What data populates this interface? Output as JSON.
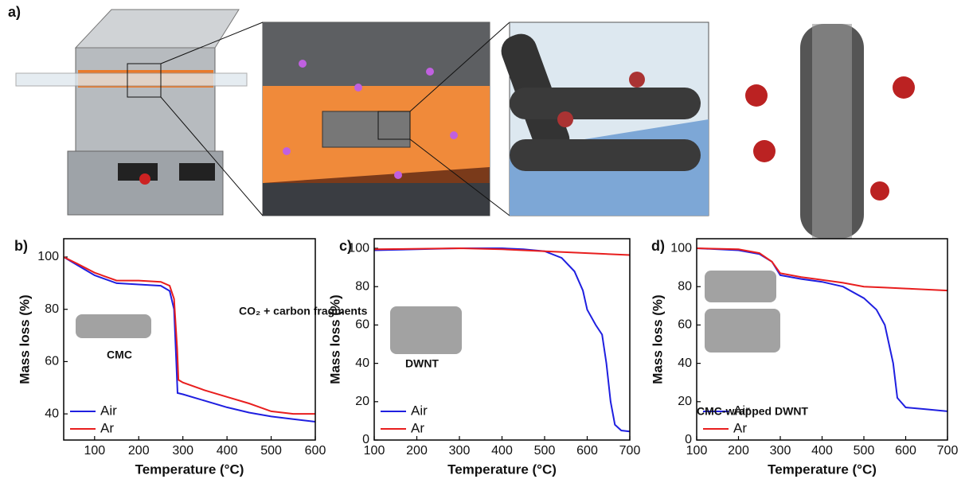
{
  "figure_label": "a)",
  "chart_data": [
    {
      "type": "line",
      "panel_label": "b)",
      "xlabel": "Temperature (°C)",
      "ylabel": "Mass loss (%)",
      "xlim": [
        30,
        600
      ],
      "xticks": [
        100,
        200,
        300,
        400,
        500,
        600
      ],
      "ylim": [
        30,
        107
      ],
      "yticks": [
        40,
        60,
        80,
        100
      ],
      "legend": "lower left",
      "annotations": [
        "CO₂ + carbon fragments",
        "CMC"
      ],
      "series": [
        {
          "name": "Air",
          "color": "#1f1fe0",
          "x": [
            30,
            60,
            100,
            150,
            200,
            250,
            270,
            280,
            285,
            288,
            300,
            350,
            400,
            450,
            500,
            550,
            600
          ],
          "values": [
            100,
            97,
            93,
            90,
            89.5,
            89,
            87,
            80,
            60,
            48,
            47.5,
            45,
            42.5,
            40.5,
            39,
            38,
            37
          ]
        },
        {
          "name": "Ar",
          "color": "#e81e1e",
          "x": [
            30,
            60,
            100,
            150,
            200,
            250,
            270,
            280,
            287,
            290,
            300,
            350,
            400,
            450,
            500,
            550,
            600
          ],
          "values": [
            100,
            97.5,
            94,
            91,
            91,
            90.5,
            89,
            84,
            65,
            53,
            52,
            49,
            46.5,
            44,
            41,
            40,
            40
          ]
        }
      ]
    },
    {
      "type": "line",
      "panel_label": "c)",
      "xlabel": "Temperature (°C)",
      "ylabel": "Mass loss (%)",
      "xlim": [
        100,
        700
      ],
      "xticks": [
        100,
        200,
        300,
        400,
        500,
        600,
        700
      ],
      "ylim": [
        0,
        105
      ],
      "yticks": [
        0,
        20,
        40,
        60,
        80,
        100
      ],
      "legend": "lower left",
      "annotations": [
        "DWNT"
      ],
      "series": [
        {
          "name": "Air",
          "color": "#1f1fe0",
          "x": [
            100,
            200,
            300,
            400,
            450,
            500,
            540,
            570,
            590,
            600,
            620,
            635,
            645,
            655,
            665,
            680,
            700
          ],
          "values": [
            99,
            99.5,
            100,
            100,
            99.5,
            98.5,
            95,
            88,
            78,
            68,
            60,
            55,
            40,
            20,
            8,
            5,
            4.5
          ]
        },
        {
          "name": "Ar",
          "color": "#e81e1e",
          "x": [
            100,
            300,
            400,
            500,
            600,
            700
          ],
          "values": [
            99.5,
            100,
            99.5,
            98.5,
            97.5,
            96.5
          ]
        }
      ]
    },
    {
      "type": "line",
      "panel_label": "d)",
      "xlabel": "Temperature (°C)",
      "ylabel": "Mass loss (%)",
      "xlim": [
        100,
        700
      ],
      "xticks": [
        100,
        200,
        300,
        400,
        500,
        600,
        700
      ],
      "ylim": [
        0,
        105
      ],
      "yticks": [
        0,
        20,
        40,
        60,
        80,
        100
      ],
      "legend": "lower left",
      "annotations": [
        "CMC-wrapped DWNT"
      ],
      "series": [
        {
          "name": "Air",
          "color": "#1f1fe0",
          "x": [
            100,
            200,
            250,
            280,
            300,
            350,
            400,
            450,
            500,
            530,
            550,
            570,
            580,
            600,
            650,
            700
          ],
          "values": [
            100,
            99,
            97,
            93,
            86,
            84,
            82.5,
            80,
            74,
            68,
            60,
            40,
            22,
            17,
            16,
            15
          ]
        },
        {
          "name": "Ar",
          "color": "#e81e1e",
          "x": [
            100,
            200,
            250,
            280,
            300,
            350,
            400,
            450,
            500,
            550,
            600,
            700
          ],
          "values": [
            100,
            99.5,
            97.5,
            93,
            87,
            85,
            83.5,
            82,
            80,
            79.5,
            79,
            78
          ]
        }
      ]
    }
  ]
}
